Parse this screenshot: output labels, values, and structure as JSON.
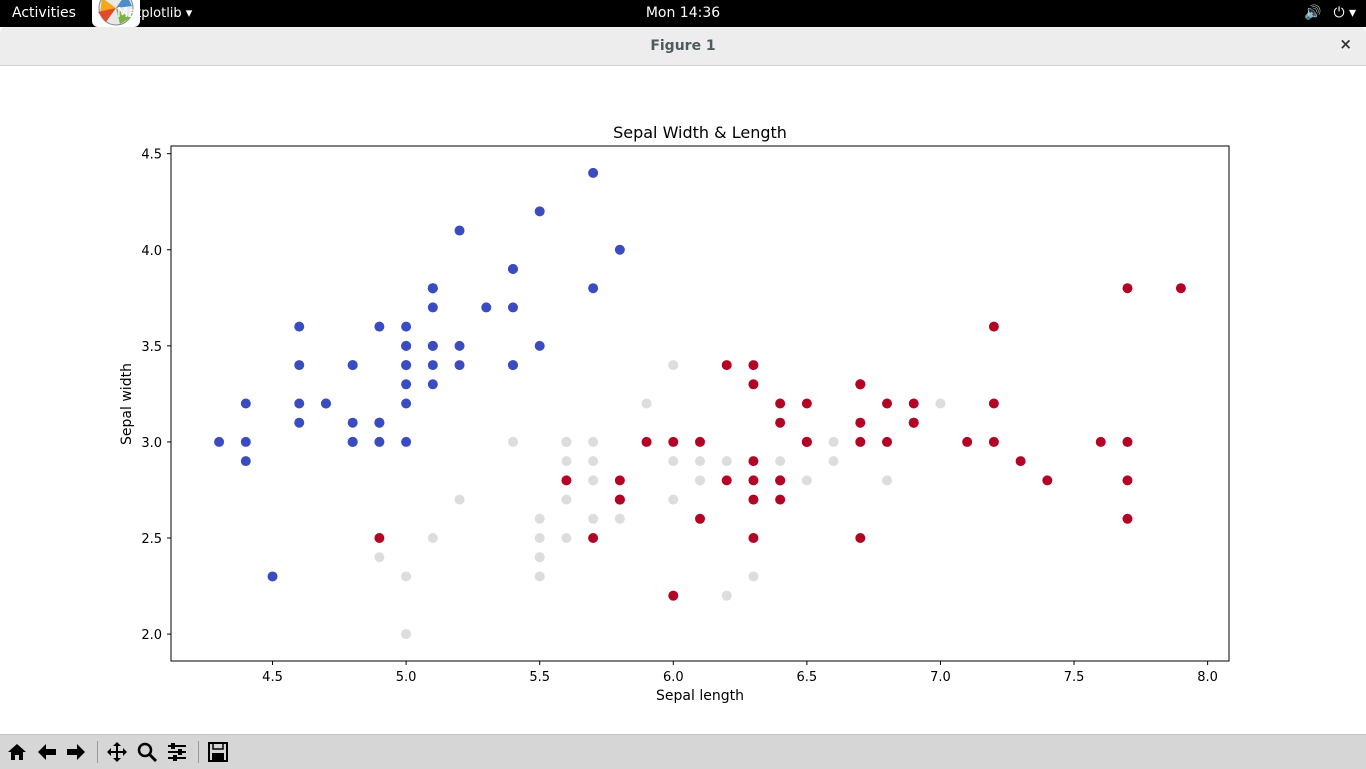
{
  "topbar": {
    "activities": "Activities",
    "app_menu": "Matplotlib ▾",
    "clock": "Mon 14:36",
    "volume_icon": "🔊",
    "power_icon": "⏻ ▾"
  },
  "window": {
    "title": "Figure 1",
    "close": "×"
  },
  "toolbar": {
    "buttons": [
      "home-icon",
      "back-arrow-icon",
      "forward-arrow-icon",
      "pan-icon",
      "zoom-icon",
      "subplots-icon",
      "save-icon"
    ]
  },
  "chart_data": {
    "type": "scatter",
    "title": "Sepal Width & Length",
    "xlabel": "Sepal length",
    "ylabel": "Sepal width",
    "xlim": [
      4.12,
      8.08
    ],
    "ylim": [
      1.86,
      4.54
    ],
    "xticks": [
      "4.5",
      "5.0",
      "5.5",
      "6.0",
      "6.5",
      "7.0",
      "7.5",
      "8.0"
    ],
    "yticks": [
      "2.0",
      "2.5",
      "3.0",
      "3.5",
      "4.0",
      "4.5"
    ],
    "series": [
      {
        "color": "#3b4cc0",
        "points": [
          [
            5.1,
            3.5
          ],
          [
            4.9,
            3.0
          ],
          [
            4.7,
            3.2
          ],
          [
            4.6,
            3.1
          ],
          [
            5.0,
            3.6
          ],
          [
            5.4,
            3.9
          ],
          [
            4.6,
            3.4
          ],
          [
            5.0,
            3.4
          ],
          [
            4.4,
            2.9
          ],
          [
            4.9,
            3.1
          ],
          [
            5.4,
            3.7
          ],
          [
            4.8,
            3.4
          ],
          [
            4.8,
            3.0
          ],
          [
            4.3,
            3.0
          ],
          [
            5.8,
            4.0
          ],
          [
            5.7,
            4.4
          ],
          [
            5.4,
            3.9
          ],
          [
            5.1,
            3.5
          ],
          [
            5.7,
            3.8
          ],
          [
            5.1,
            3.8
          ],
          [
            5.4,
            3.4
          ],
          [
            5.1,
            3.7
          ],
          [
            4.6,
            3.6
          ],
          [
            5.1,
            3.3
          ],
          [
            4.8,
            3.4
          ],
          [
            5.0,
            3.0
          ],
          [
            5.0,
            3.4
          ],
          [
            5.2,
            3.5
          ],
          [
            5.2,
            3.4
          ],
          [
            4.7,
            3.2
          ],
          [
            4.8,
            3.1
          ],
          [
            5.4,
            3.4
          ],
          [
            5.2,
            4.1
          ],
          [
            5.5,
            4.2
          ],
          [
            4.9,
            3.1
          ],
          [
            5.0,
            3.2
          ],
          [
            5.5,
            3.5
          ],
          [
            4.9,
            3.6
          ],
          [
            4.4,
            3.0
          ],
          [
            5.1,
            3.4
          ],
          [
            5.0,
            3.5
          ],
          [
            4.5,
            2.3
          ],
          [
            4.4,
            3.2
          ],
          [
            5.0,
            3.5
          ],
          [
            5.1,
            3.8
          ],
          [
            4.8,
            3.0
          ],
          [
            5.1,
            3.8
          ],
          [
            4.6,
            3.2
          ],
          [
            5.3,
            3.7
          ],
          [
            5.0,
            3.3
          ]
        ]
      },
      {
        "color": "#dddddd",
        "points": [
          [
            7.0,
            3.2
          ],
          [
            6.4,
            3.2
          ],
          [
            6.9,
            3.1
          ],
          [
            5.5,
            2.3
          ],
          [
            6.5,
            2.8
          ],
          [
            5.7,
            2.8
          ],
          [
            6.3,
            3.3
          ],
          [
            4.9,
            2.4
          ],
          [
            6.6,
            2.9
          ],
          [
            5.2,
            2.7
          ],
          [
            5.0,
            2.0
          ],
          [
            5.9,
            3.0
          ],
          [
            6.0,
            2.2
          ],
          [
            6.1,
            2.9
          ],
          [
            5.6,
            2.9
          ],
          [
            6.7,
            3.1
          ],
          [
            5.6,
            3.0
          ],
          [
            5.8,
            2.7
          ],
          [
            6.2,
            2.2
          ],
          [
            5.6,
            2.5
          ],
          [
            5.9,
            3.2
          ],
          [
            6.1,
            2.8
          ],
          [
            6.3,
            2.5
          ],
          [
            6.1,
            2.8
          ],
          [
            6.4,
            2.9
          ],
          [
            6.6,
            3.0
          ],
          [
            6.8,
            2.8
          ],
          [
            6.7,
            3.0
          ],
          [
            6.0,
            2.9
          ],
          [
            5.7,
            2.6
          ],
          [
            5.5,
            2.4
          ],
          [
            5.5,
            2.4
          ],
          [
            5.8,
            2.7
          ],
          [
            6.0,
            2.7
          ],
          [
            5.4,
            3.0
          ],
          [
            6.0,
            3.4
          ],
          [
            6.7,
            3.1
          ],
          [
            6.3,
            2.3
          ],
          [
            5.6,
            3.0
          ],
          [
            5.5,
            2.5
          ],
          [
            5.5,
            2.6
          ],
          [
            6.1,
            3.0
          ],
          [
            5.8,
            2.6
          ],
          [
            5.0,
            2.3
          ],
          [
            5.6,
            2.7
          ],
          [
            5.7,
            3.0
          ],
          [
            5.7,
            2.9
          ],
          [
            6.2,
            2.9
          ],
          [
            5.1,
            2.5
          ],
          [
            5.7,
            2.8
          ]
        ]
      },
      {
        "color": "#b40426",
        "points": [
          [
            6.3,
            3.3
          ],
          [
            5.8,
            2.7
          ],
          [
            7.1,
            3.0
          ],
          [
            6.3,
            2.9
          ],
          [
            6.5,
            3.0
          ],
          [
            7.6,
            3.0
          ],
          [
            4.9,
            2.5
          ],
          [
            7.3,
            2.9
          ],
          [
            6.7,
            2.5
          ],
          [
            7.2,
            3.6
          ],
          [
            6.5,
            3.2
          ],
          [
            6.4,
            2.7
          ],
          [
            6.8,
            3.0
          ],
          [
            5.7,
            2.5
          ],
          [
            5.8,
            2.8
          ],
          [
            6.4,
            3.2
          ],
          [
            6.5,
            3.0
          ],
          [
            7.7,
            3.8
          ],
          [
            7.7,
            2.6
          ],
          [
            6.0,
            2.2
          ],
          [
            6.9,
            3.2
          ],
          [
            5.6,
            2.8
          ],
          [
            7.7,
            2.8
          ],
          [
            6.3,
            2.7
          ],
          [
            6.7,
            3.3
          ],
          [
            7.2,
            3.2
          ],
          [
            6.2,
            2.8
          ],
          [
            6.1,
            3.0
          ],
          [
            6.4,
            2.8
          ],
          [
            7.2,
            3.0
          ],
          [
            7.4,
            2.8
          ],
          [
            7.9,
            3.8
          ],
          [
            6.4,
            2.8
          ],
          [
            6.3,
            2.8
          ],
          [
            6.1,
            2.6
          ],
          [
            7.7,
            3.0
          ],
          [
            6.3,
            3.4
          ],
          [
            6.4,
            3.1
          ],
          [
            6.0,
            3.0
          ],
          [
            6.9,
            3.1
          ],
          [
            6.7,
            3.1
          ],
          [
            6.9,
            3.1
          ],
          [
            5.8,
            2.7
          ],
          [
            6.8,
            3.2
          ],
          [
            6.7,
            3.3
          ],
          [
            6.7,
            3.0
          ],
          [
            6.3,
            2.5
          ],
          [
            6.5,
            3.0
          ],
          [
            6.2,
            3.4
          ],
          [
            5.9,
            3.0
          ]
        ]
      }
    ]
  }
}
